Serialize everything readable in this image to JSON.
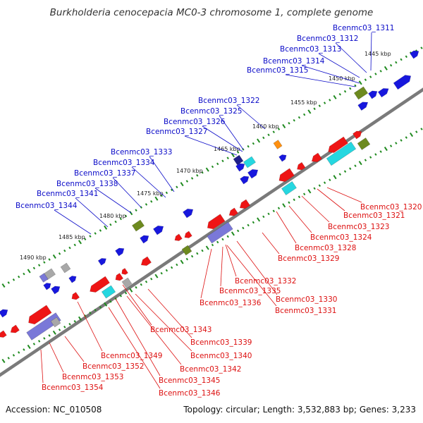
{
  "title": "Burkholderia cenocepacia MC0-3 chromosome 1, complete genome",
  "footer": {
    "accession_label": "Accession:",
    "accession": "NC_010508",
    "topology_label": "Topology:",
    "topology": "circular",
    "length_label": "Length:",
    "length": "3,532,883 bp",
    "genes_label": "Genes:",
    "genes": "3,233"
  },
  "colors": {
    "plus_label": "#0a0ac8",
    "minus_label": "#dd1010",
    "backbone": "#7a7a7a",
    "tick": "#1f8a1f",
    "plus_gene": "#1717dd",
    "minus_gene": "#ee1515",
    "olive": "#6d8a1f",
    "cyan": "#25d7e0",
    "navy": "#1f1f8a",
    "orange": "#ff9010",
    "grey": "#a8a8a8",
    "violet": "#7a78d8"
  },
  "kbp_labels": [
    "1445 kbp",
    "1450 kbp",
    "1455 kbp",
    "1460 kbp",
    "1465 kbp",
    "1470 kbp",
    "1475 kbp",
    "1480 kbp",
    "1485 kbp",
    "1490 kbp"
  ],
  "plus_genes": [
    "Bcenmc03_1311",
    "Bcenmc03_1312",
    "Bcenmc03_1313",
    "Bcenmc03_1314",
    "Bcenmc03_1315",
    "Bcenmc03_1322",
    "Bcenmc03_1325",
    "Bcenmc03_1326",
    "Bcenmc03_1327",
    "Bcenmc03_1333",
    "Bcenmc03_1334",
    "Bcenmc03_1337",
    "Bcenmc03_1338",
    "Bcenmc03_1341",
    "Bcenmc03_1344"
  ],
  "minus_genes": [
    "Bcenmc03_1320",
    "Bcenmc03_1321",
    "Bcenmc03_1323",
    "Bcenmc03_1324",
    "Bcenmc03_1328",
    "Bcenmc03_1329",
    "Bcenmc03_1330",
    "Bcenmc03_1331",
    "Bcenmc03_1332",
    "Bcenmc03_1335",
    "Bcenmc03_1336",
    "Bcenmc03_1343",
    "Bcenmc03_1339",
    "Bcenmc03_1340",
    "Bcenmc03_1342",
    "Bcenmc03_1345",
    "Bcenmc03_1346",
    "Bcenmc03_1349",
    "Bcenmc03_1352",
    "Bcenmc03_1353",
    "Bcenmc03_1354"
  ]
}
